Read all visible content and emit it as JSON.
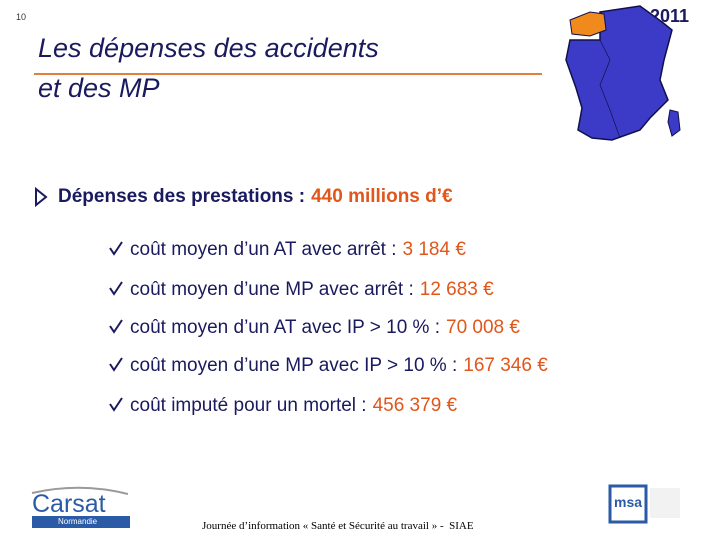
{
  "page_number": "10",
  "year": "2011",
  "title": {
    "lines": [
      "Les dépenses des accidents",
      "et des MP"
    ]
  },
  "main_bullet": {
    "label": "Dépenses des prestations :",
    "value": "440 millions d’€"
  },
  "items": [
    {
      "label": "coût moyen d’un AT avec arrêt :",
      "value": "3 184 €"
    },
    {
      "label": "coût moyen d’une MP avec arrêt :",
      "value": "12 683 €"
    },
    {
      "label": "coût moyen d’un AT avec IP > 10 % :",
      "value": "70 008 €"
    },
    {
      "label": "coût moyen d’une MP avec IP > 10 % :",
      "value": "167 346 €"
    },
    {
      "label": "coût imputé pour un mortel :",
      "value": "456 379 €"
    }
  ],
  "footer": "Journée d’information « Santé et Sécurité au travail » -  SIAE",
  "logos": {
    "left": {
      "name": "Carsat",
      "region": "Normandie"
    },
    "right": {
      "name": "msa"
    }
  }
}
